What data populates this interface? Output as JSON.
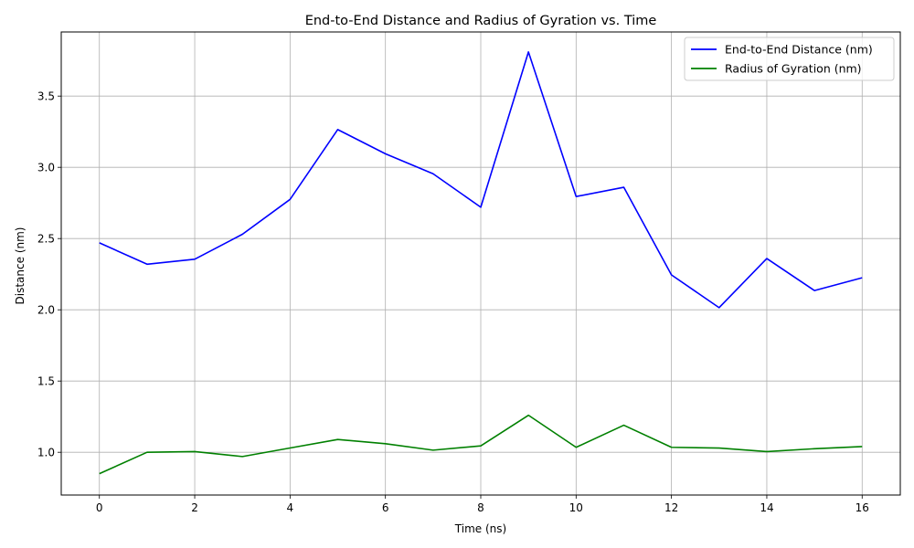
{
  "chart_data": {
    "type": "line",
    "title": "End-to-End Distance and Radius of Gyration vs. Time",
    "xlabel": "Time (ns)",
    "ylabel": "Distance (nm)",
    "xlim": [
      -0.8,
      16.8
    ],
    "ylim": [
      0.7,
      3.95
    ],
    "xticks": [
      0,
      2,
      4,
      6,
      8,
      10,
      12,
      14,
      16
    ],
    "yticks": [
      1.0,
      1.5,
      2.0,
      2.5,
      3.0,
      3.5
    ],
    "xtick_labels": [
      "0",
      "2",
      "4",
      "6",
      "8",
      "10",
      "12",
      "14",
      "16"
    ],
    "ytick_labels": [
      "1.0",
      "1.5",
      "2.0",
      "2.5",
      "3.0",
      "3.5"
    ],
    "grid": true,
    "legend_position": "top-right",
    "x": [
      0,
      1,
      2,
      3,
      4,
      5,
      6,
      7,
      8,
      9,
      10,
      11,
      12,
      13,
      14,
      15,
      16
    ],
    "series": [
      {
        "name": "End-to-End Distance (nm)",
        "color": "#0000ff",
        "values": [
          2.47,
          2.32,
          2.355,
          2.53,
          2.775,
          3.265,
          3.095,
          2.955,
          2.72,
          3.81,
          2.795,
          2.86,
          2.245,
          2.015,
          2.36,
          2.135,
          2.225
        ]
      },
      {
        "name": "Radius of Gyration (nm)",
        "color": "#008000",
        "values": [
          0.85,
          1.0,
          1.005,
          0.97,
          1.03,
          1.09,
          1.06,
          1.015,
          1.045,
          1.26,
          1.035,
          1.19,
          1.035,
          1.03,
          1.005,
          1.025,
          1.04
        ]
      }
    ]
  }
}
